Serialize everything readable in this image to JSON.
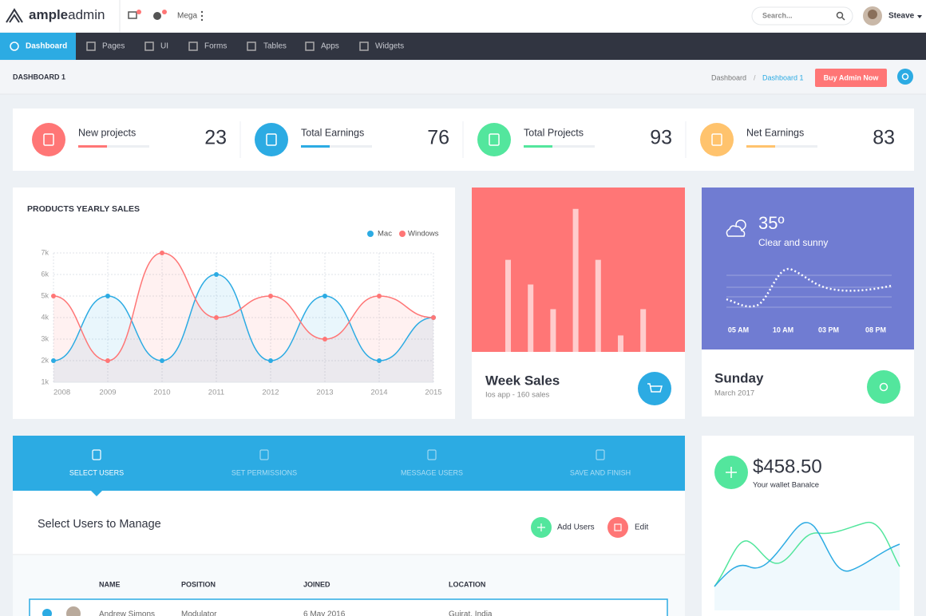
{
  "brand": {
    "bold": "ample",
    "light": "admin"
  },
  "topbar": {
    "mega": "Mega",
    "search_placeholder": "Search...",
    "user": "Steave"
  },
  "menu": [
    "Dashboard",
    "Pages",
    "UI",
    "Forms",
    "Tables",
    "Apps",
    "Widgets"
  ],
  "page": {
    "title": "DASHBOARD 1",
    "breadcrumb": [
      "Dashboard",
      "Dashboard 1"
    ],
    "breadcrumb_separator": "/",
    "button": "Buy Admin Now"
  },
  "stats": [
    {
      "label": "New projects",
      "value": 23,
      "color": "#ff7676"
    },
    {
      "label": "Total Earnings",
      "value": 76,
      "color": "#2cabe3"
    },
    {
      "label": "Total Projects",
      "value": 93,
      "color": "#53e69d"
    },
    {
      "label": "Net Earnings",
      "value": 83,
      "color": "#ffc36d"
    }
  ],
  "sales_chart": {
    "type": "line",
    "title": "PRODUCTS YEARLY SALES",
    "categories": [
      "2008",
      "2009",
      "2010",
      "2011",
      "2012",
      "2013",
      "2014",
      "2015"
    ],
    "series": [
      {
        "name": "Mac",
        "color": "#2cabe3",
        "values": [
          2,
          5,
          2,
          6,
          2,
          5,
          2,
          4
        ]
      },
      {
        "name": "Windows",
        "color": "#ff7676",
        "values": [
          5,
          2,
          7,
          4,
          5,
          3,
          5,
          4
        ]
      }
    ],
    "ylim": [
      1,
      7
    ],
    "yticks": [
      {
        "value": 1,
        "label": "1k"
      },
      {
        "value": 2,
        "label": "2k"
      },
      {
        "value": 3,
        "label": "3k"
      },
      {
        "value": 4,
        "label": "4k"
      },
      {
        "value": 5,
        "label": "5k"
      },
      {
        "value": 6,
        "label": "6k"
      },
      {
        "value": 7,
        "label": "7k"
      }
    ],
    "grid": true
  },
  "week_sales": {
    "type": "bar",
    "title": "Week Sales",
    "subtitle": "Ios app - 160 sales",
    "values": [
      5.6,
      4.1,
      2.6,
      8.7,
      5.6,
      1,
      2.6
    ],
    "ylim": [
      0,
      10
    ],
    "color": "#ffcccc"
  },
  "weather": {
    "temperature": "35º",
    "condition": "Clear and sunny",
    "times": [
      "05 AM",
      "10 AM",
      "03 PM",
      "08 PM"
    ],
    "day": "Sunday",
    "date": "March 2017"
  },
  "wizard": {
    "steps": [
      "SELECT USERS",
      "SET PERMISSIONS",
      "MESSAGE USERS",
      "SAVE AND FINISH"
    ],
    "heading": "Select Users to Manage",
    "actions": [
      "Add Users",
      "Edit"
    ],
    "table": {
      "headers": [
        "NAME",
        "POSITION",
        "JOINED",
        "LOCATION"
      ],
      "rows": [
        [
          "Andrew Simons",
          "Modulator",
          "6 May 2016",
          "Gujrat, India"
        ]
      ]
    }
  },
  "wallet": {
    "amount": "$458.50",
    "label": "Your wallet Banalce"
  }
}
